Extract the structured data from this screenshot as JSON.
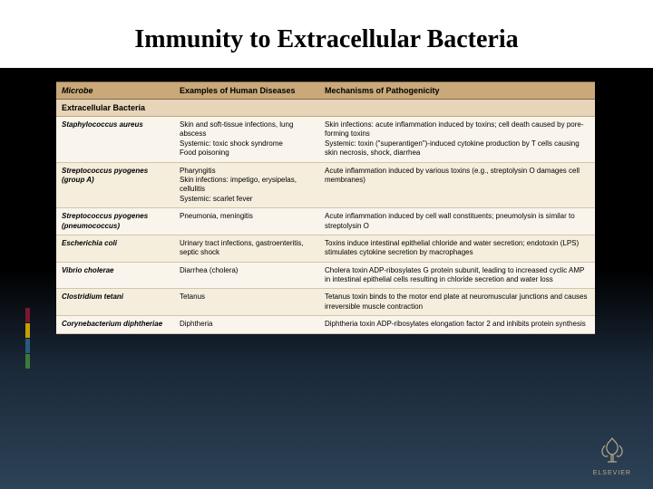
{
  "title": "Immunity to Extracellular Bacteria",
  "accent_colors": [
    "#7a1730",
    "#c4a000",
    "#2a5a7a",
    "#3a7a3a"
  ],
  "table": {
    "headers": [
      "Microbe",
      "Examples of Human Diseases",
      "Mechanisms of Pathogenicity"
    ],
    "section_header": "Extracellular Bacteria",
    "rows": [
      {
        "microbe": "Staphylococcus aureus",
        "diseases": "Skin and soft-tissue infections, lung abscess\nSystemic: toxic shock syndrome\nFood poisoning",
        "mechanisms": "Skin infections: acute inflammation induced by toxins; cell death caused by pore-forming toxins\nSystemic: toxin (\"superantigen\")-induced cytokine production by T cells causing skin necrosis, shock, diarrhea"
      },
      {
        "microbe": "Streptococcus pyogenes (group A)",
        "diseases": "Pharyngitis\nSkin infections: impetigo, erysipelas, cellulitis\nSystemic: scarlet fever",
        "mechanisms": "Acute inflammation induced by various toxins (e.g., streptolysin O damages cell membranes)"
      },
      {
        "microbe": "Streptococcus pyogenes (pneumococcus)",
        "diseases": "Pneumonia, meningitis",
        "mechanisms": "Acute inflammation induced by cell wall constituents; pneumolysin is similar to streptolysin O"
      },
      {
        "microbe": "Escherichia coli",
        "diseases": "Urinary tract infections, gastroenteritis, septic shock",
        "mechanisms": "Toxins induce intestinal epithelial chloride and water secretion; endotoxin (LPS) stimulates cytokine secretion by macrophages"
      },
      {
        "microbe": "Vibrio cholerae",
        "diseases": "Diarrhea (cholera)",
        "mechanisms": "Cholera toxin ADP-ribosylates G protein subunit, leading to increased cyclic AMP in intestinal epithelial cells resulting in chloride secretion and water loss"
      },
      {
        "microbe": "Clostridium tetani",
        "diseases": "Tetanus",
        "mechanisms": "Tetanus toxin binds to the motor end plate at neuromuscular junctions and causes irreversible muscle contraction"
      },
      {
        "microbe": "Corynebacterium diphtheriae",
        "diseases": "Diphtheria",
        "mechanisms": "Diphtheria toxin ADP-ribosylates elongation factor 2 and inhibits protein synthesis"
      }
    ]
  },
  "publisher": "ELSEVIER"
}
